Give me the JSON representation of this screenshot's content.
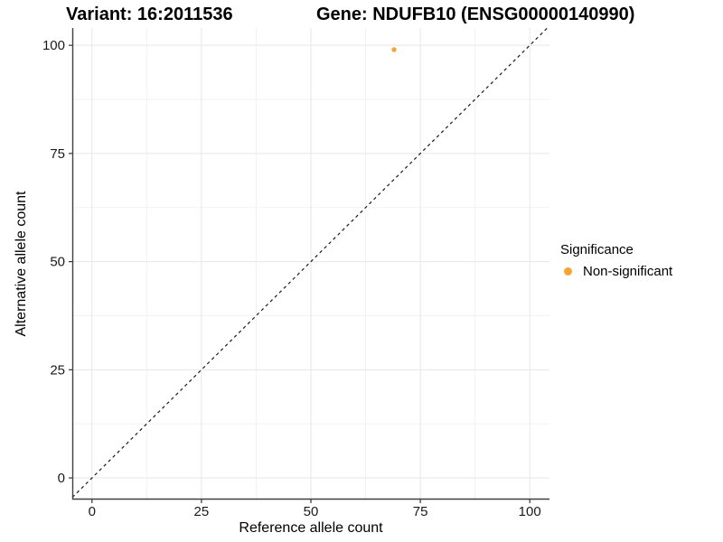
{
  "header": {
    "variant_title": "Variant: 16:2011536",
    "gene_title": "Gene: NDUFB10 (ENSG00000140990)"
  },
  "chart_data": {
    "type": "scatter",
    "xlabel": "Reference allele count",
    "ylabel": "Alternative allele count",
    "xticks": [
      0,
      25,
      50,
      75,
      100
    ],
    "yticks": [
      0,
      25,
      50,
      75,
      100
    ],
    "minor_gridlines": [
      12.5,
      37.5,
      62.5,
      87.5
    ],
    "xlim": [
      -4.5,
      104.5
    ],
    "ylim": [
      -5,
      104
    ],
    "grid": "major+minor",
    "points": [
      {
        "x": 69,
        "y": 99,
        "series": "Non-significant"
      }
    ],
    "identity_line": {
      "slope": 1,
      "intercept": 0,
      "style": "dashed",
      "color": "#1a1a1a"
    },
    "legend": {
      "title": "Significance",
      "position": "right",
      "entries": [
        {
          "label": "Non-significant",
          "color": "#FCA32C"
        }
      ]
    },
    "colors": {
      "point": "#FCA32C",
      "grid_major": "#E6E6E6",
      "grid_minor": "#F2F2F2",
      "axis_line": "#404040",
      "tick_mark": "#333333",
      "text": "#1a1a1a"
    }
  }
}
